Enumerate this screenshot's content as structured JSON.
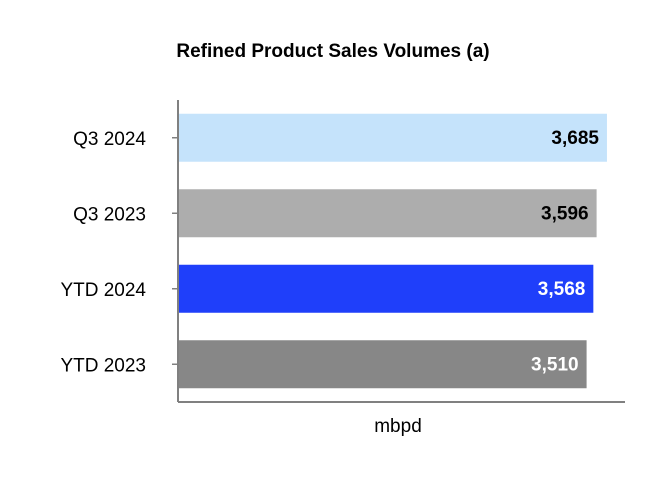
{
  "chart_data": {
    "type": "bar",
    "orientation": "horizontal",
    "title": "Refined Product Sales Volumes (a)",
    "xlabel": "mbpd",
    "categories": [
      "Q3 2024",
      "Q3 2023",
      "YTD 2024",
      "YTD 2023"
    ],
    "values": [
      3685,
      3596,
      3568,
      3510
    ],
    "value_labels": [
      "3,685",
      "3,596",
      "3,568",
      "3,510"
    ],
    "colors": [
      "#c5e3fb",
      "#adadad",
      "#1f3ffa",
      "#878787"
    ],
    "xlim": [
      0,
      3840
    ]
  }
}
